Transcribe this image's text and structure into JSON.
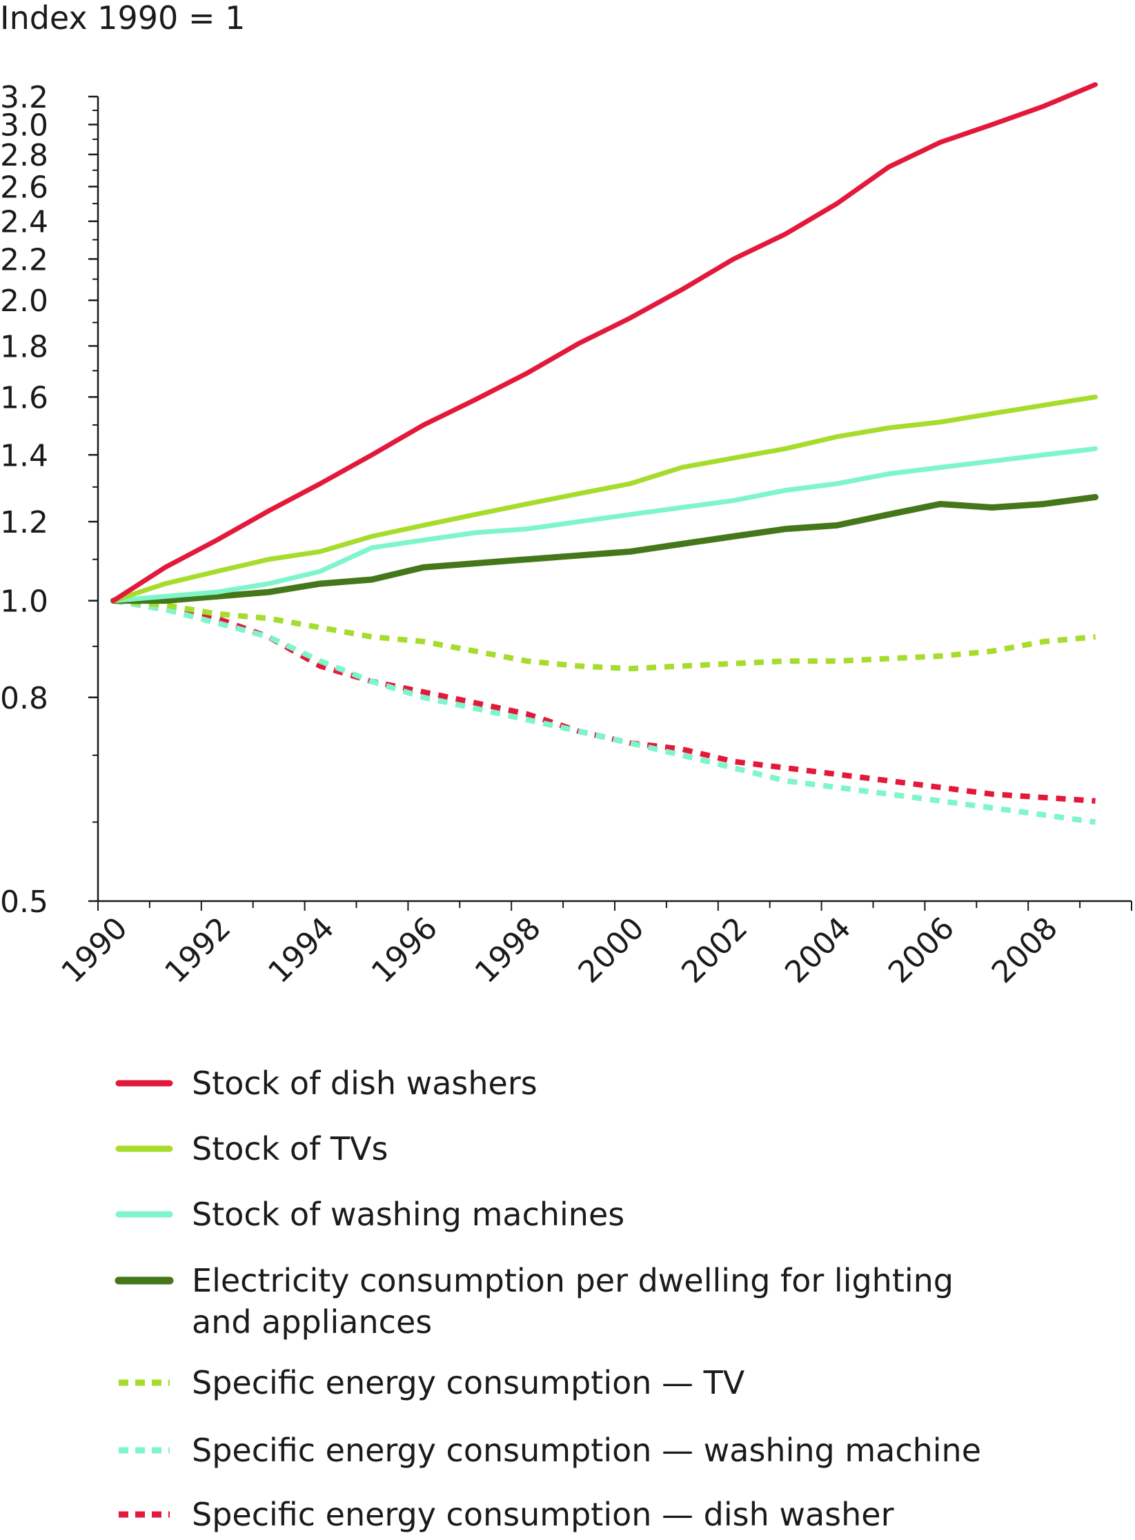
{
  "chart_data": {
    "type": "line",
    "ylabel": "Index 1990 = 1",
    "x": [
      1990,
      1991,
      1992,
      1993,
      1994,
      1995,
      1996,
      1997,
      1998,
      1999,
      2000,
      2001,
      2002,
      2003,
      2004,
      2005,
      2006,
      2007,
      2008,
      2009
    ],
    "x_tick_labels": [
      "1990",
      "1992",
      "1994",
      "1996",
      "1998",
      "2000",
      "2002",
      "2004",
      "2006",
      "2008"
    ],
    "y_tick_labels": [
      "3.2",
      "3.0",
      "2.8",
      "2.6",
      "2.4",
      "2.2",
      "2.0",
      "1.8",
      "1.6",
      "1.4",
      "1.2",
      "1.0",
      "0.8",
      "0.5"
    ],
    "xlim": [
      1990,
      2010
    ],
    "y_scale": "log",
    "ylim": [
      0.5,
      3.2
    ],
    "grid": false,
    "legend_position": "bottom",
    "series": [
      {
        "name": "Stock of dish washers",
        "color": "#e3193b",
        "style": "solid",
        "values": [
          1.0,
          1.08,
          1.15,
          1.23,
          1.31,
          1.4,
          1.5,
          1.59,
          1.69,
          1.81,
          1.92,
          2.05,
          2.2,
          2.33,
          2.5,
          2.72,
          2.88,
          3.0,
          3.13,
          3.29
        ]
      },
      {
        "name": "Stock of TVs",
        "color": "#a6dc2b",
        "style": "solid",
        "values": [
          1.0,
          1.04,
          1.07,
          1.1,
          1.12,
          1.16,
          1.19,
          1.22,
          1.25,
          1.28,
          1.31,
          1.36,
          1.39,
          1.42,
          1.46,
          1.49,
          1.51,
          1.54,
          1.57,
          1.6
        ]
      },
      {
        "name": "Stock of washing machines",
        "color": "#7ef5ca",
        "style": "solid",
        "values": [
          1.0,
          1.01,
          1.02,
          1.04,
          1.07,
          1.13,
          1.15,
          1.17,
          1.18,
          1.2,
          1.22,
          1.24,
          1.26,
          1.29,
          1.31,
          1.34,
          1.36,
          1.38,
          1.4,
          1.42
        ]
      },
      {
        "name": "Electricity consumption per dwelling for lighting and appliances",
        "color": "#44761a",
        "style": "solid",
        "values": [
          1.0,
          1.0,
          1.01,
          1.02,
          1.04,
          1.05,
          1.08,
          1.09,
          1.1,
          1.11,
          1.12,
          1.14,
          1.16,
          1.18,
          1.19,
          1.22,
          1.25,
          1.24,
          1.25,
          1.27
        ]
      },
      {
        "name": "Specific energy consumption — TV",
        "color": "#a6dc2b",
        "style": "dashed",
        "values": [
          1.0,
          0.99,
          0.97,
          0.96,
          0.94,
          0.92,
          0.91,
          0.89,
          0.87,
          0.86,
          0.855,
          0.86,
          0.865,
          0.87,
          0.87,
          0.875,
          0.88,
          0.89,
          0.91,
          0.92
        ]
      },
      {
        "name": "Specific energy consumption — washing machine",
        "color": "#7ef5ca",
        "style": "dashed",
        "values": [
          1.0,
          0.98,
          0.95,
          0.92,
          0.87,
          0.83,
          0.8,
          0.78,
          0.76,
          0.74,
          0.72,
          0.7,
          0.68,
          0.66,
          0.65,
          0.64,
          0.63,
          0.62,
          0.61,
          0.6
        ]
      },
      {
        "name": "Specific energy consumption — dish washer",
        "color": "#e3193b",
        "style": "dashed",
        "values": [
          1.0,
          0.98,
          0.96,
          0.92,
          0.86,
          0.83,
          0.81,
          0.79,
          0.77,
          0.74,
          0.72,
          0.71,
          0.69,
          0.68,
          0.67,
          0.66,
          0.65,
          0.64,
          0.635,
          0.63
        ]
      }
    ]
  }
}
